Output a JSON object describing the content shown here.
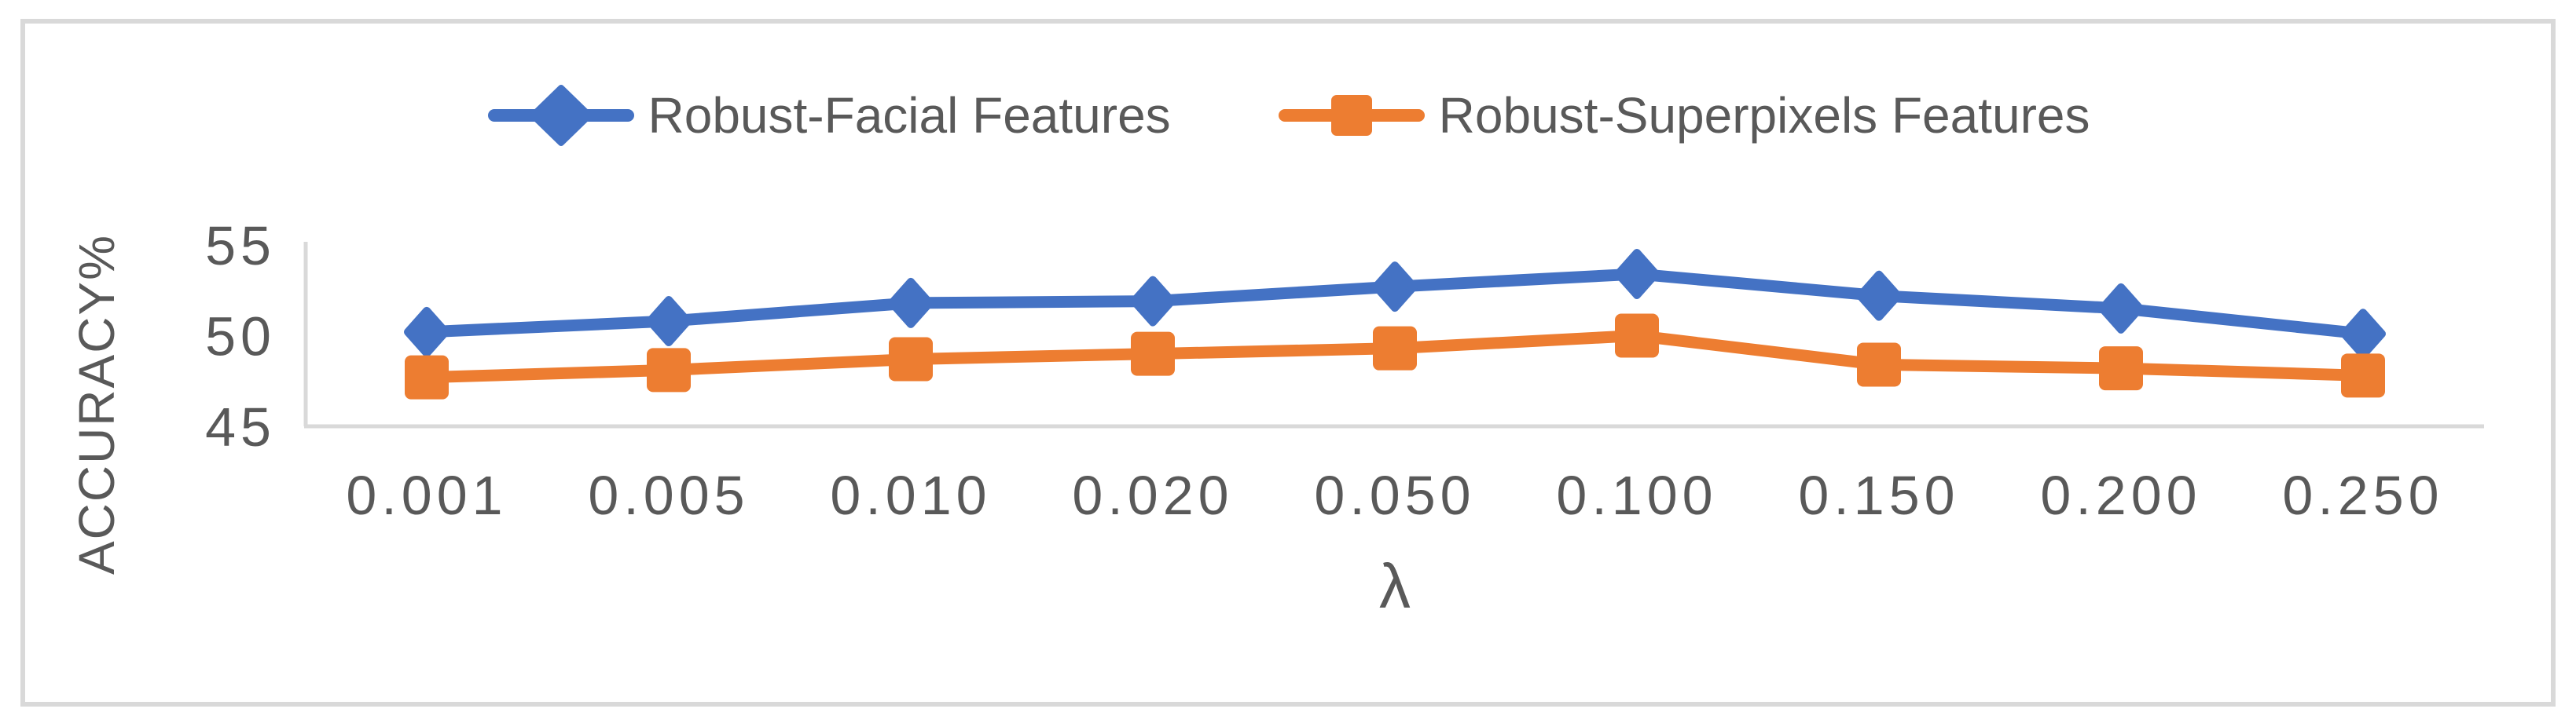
{
  "figure": {
    "background": "#FFFFFF",
    "border_color": "#D9D9D9"
  },
  "chart_data": {
    "type": "line",
    "title": "",
    "xlabel": "λ",
    "ylabel": "ACCURACY%",
    "categories": [
      "0.001",
      "0.005",
      "0.010",
      "0.020",
      "0.050",
      "0.100",
      "0.150",
      "0.200",
      "0.250"
    ],
    "yticks": [
      45,
      50,
      55
    ],
    "ylim": [
      45,
      55
    ],
    "grid": false,
    "legend_position": "top-center",
    "axis_color": "#D9D9D9",
    "text_color": "#595959",
    "series": [
      {
        "name": "Robust-Facial Features",
        "color": "#4472C4",
        "marker": "diamond",
        "values": [
          50.2,
          50.8,
          51.8,
          51.9,
          52.7,
          53.4,
          52.2,
          51.5,
          50.1
        ]
      },
      {
        "name": "Robust-Superpixels Features",
        "color": "#ED7D31",
        "marker": "square",
        "values": [
          47.7,
          48.1,
          48.7,
          49.0,
          49.3,
          50.0,
          48.4,
          48.2,
          47.8
        ]
      }
    ]
  }
}
